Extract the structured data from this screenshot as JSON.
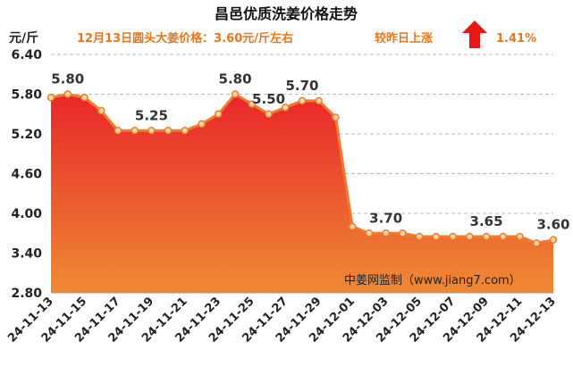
{
  "colors": {
    "title": "#111111",
    "subtitle": "#e8761b",
    "arrow": "#e8170f",
    "area_top": "#e9262a",
    "area_bottom": "#ee8a34",
    "line": "#f27a2a",
    "marker_fill": "#fbd9a6",
    "grid": "#bbbbbb",
    "axis_text": "#222222",
    "label_text": "#333333"
  },
  "header": {
    "title": "昌邑优质洗姜价格走势",
    "price_note": "12月13日圆头大姜价格：3.60元/斤左右",
    "change_note": "较昨日上涨",
    "change_pct": "1.41%",
    "arrow_icon": "up-arrow-icon"
  },
  "watermark": "中姜网监制（www.jiang7.com）",
  "chart_data": {
    "type": "area",
    "title": "昌邑优质洗姜价格走势",
    "ylabel": "元/斤",
    "xlabel": "",
    "ylim": [
      2.8,
      6.4
    ],
    "yticks": [
      "6.40",
      "5.80",
      "5.20",
      "4.60",
      "4.00",
      "3.40",
      "2.80"
    ],
    "ytick_values": [
      6.4,
      5.8,
      5.2,
      4.6,
      4.0,
      3.4,
      2.8
    ],
    "grid": "horizontal dashed",
    "x": [
      "24-11-13",
      "24-11-14",
      "24-11-15",
      "24-11-16",
      "24-11-17",
      "24-11-18",
      "24-11-19",
      "24-11-20",
      "24-11-21",
      "24-11-22",
      "24-11-23",
      "24-11-24",
      "24-11-25",
      "24-11-26",
      "24-11-27",
      "24-11-28",
      "24-11-29",
      "24-11-30",
      "24-12-01",
      "24-12-02",
      "24-12-03",
      "24-12-04",
      "24-12-05",
      "24-12-06",
      "24-12-07",
      "24-12-08",
      "24-12-09",
      "24-12-10",
      "24-12-11",
      "24-12-12",
      "24-12-13"
    ],
    "xtick_labels": [
      "24-11-13",
      "24-11-15",
      "24-11-17",
      "24-11-19",
      "24-11-21",
      "24-11-23",
      "24-11-25",
      "24-11-27",
      "24-11-29",
      "24-12-01",
      "24-12-03",
      "24-12-05",
      "24-12-07",
      "24-12-09",
      "24-12-11",
      "24-12-13"
    ],
    "values": [
      5.75,
      5.8,
      5.75,
      5.55,
      5.25,
      5.25,
      5.25,
      5.25,
      5.25,
      5.35,
      5.5,
      5.8,
      5.65,
      5.5,
      5.6,
      5.7,
      5.7,
      5.45,
      3.8,
      3.7,
      3.7,
      3.7,
      3.65,
      3.65,
      3.65,
      3.65,
      3.65,
      3.65,
      3.65,
      3.55,
      3.6
    ],
    "data_labels": [
      {
        "x": "24-11-14",
        "text": "5.80"
      },
      {
        "x": "24-11-19",
        "text": "5.25"
      },
      {
        "x": "24-11-24",
        "text": "5.80"
      },
      {
        "x": "24-11-26",
        "text": "5.50"
      },
      {
        "x": "24-11-28",
        "text": "5.70"
      },
      {
        "x": "24-12-03",
        "text": "3.70"
      },
      {
        "x": "24-12-09",
        "text": "3.65"
      },
      {
        "x": "24-12-13",
        "text": "3.60"
      }
    ]
  }
}
